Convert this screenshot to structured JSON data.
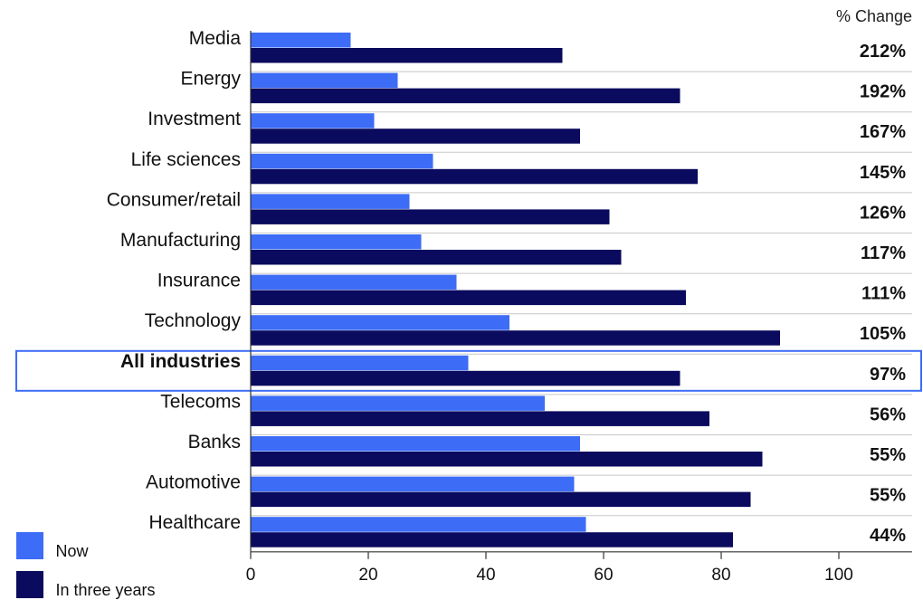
{
  "chart_data": {
    "type": "bar",
    "orientation": "horizontal",
    "categories": [
      "Media",
      "Energy",
      "Investment",
      "Life sciences",
      "Consumer/retail",
      "Manufacturing",
      "Insurance",
      "Technology",
      "All industries",
      "Telecoms",
      "Banks",
      "Automotive",
      "Healthcare"
    ],
    "series": [
      {
        "name": "Now",
        "color": "#3d6cf6",
        "values": [
          17,
          25,
          21,
          31,
          27,
          29,
          35,
          44,
          37,
          50,
          56,
          55,
          57
        ]
      },
      {
        "name": "In three years",
        "color": "#0a0a5e",
        "values": [
          53,
          73,
          56,
          76,
          61,
          63,
          74,
          90,
          73,
          78,
          87,
          85,
          82
        ]
      }
    ],
    "pct_change_header": "% Change",
    "pct_change": [
      "212%",
      "192%",
      "167%",
      "145%",
      "126%",
      "117%",
      "111%",
      "105%",
      "97%",
      "56%",
      "55%",
      "55%",
      "44%"
    ],
    "highlighted_category": "All industries",
    "highlight_color": "#3d6cf6",
    "xlim": [
      0,
      100
    ],
    "xticks": [
      0,
      20,
      40,
      60,
      80,
      100
    ],
    "title": "",
    "xlabel": "",
    "ylabel": "",
    "grid": "row-separators",
    "legend_position": "bottom-left"
  }
}
